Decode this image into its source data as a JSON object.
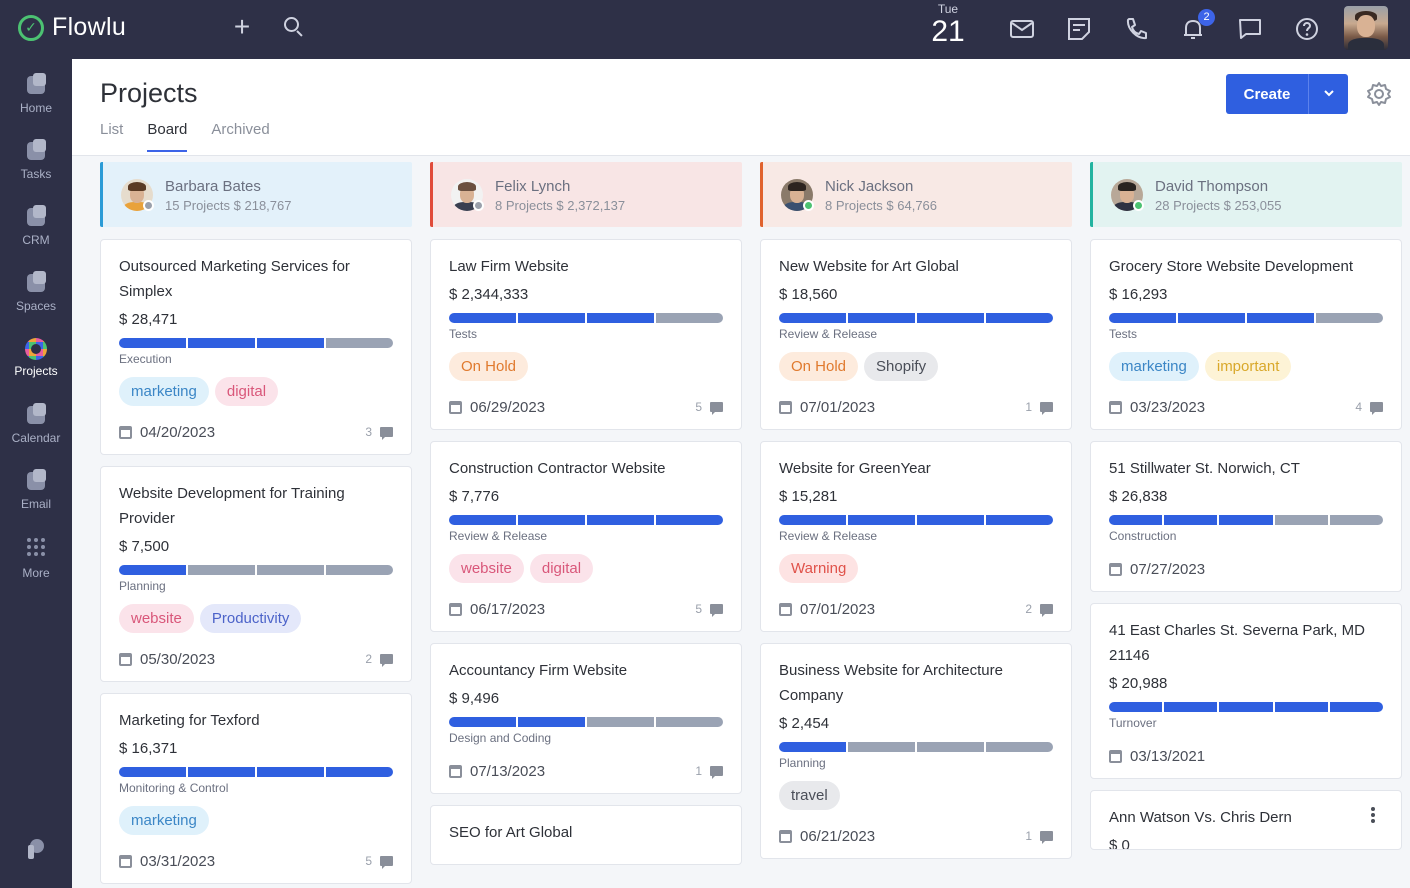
{
  "app": {
    "name": "Flowlu"
  },
  "topbar": {
    "date_day": "Tue",
    "date_num": "21",
    "notification_count": "2"
  },
  "sidebar": {
    "items": [
      {
        "label": "Home",
        "icon": "home-icon"
      },
      {
        "label": "Tasks",
        "icon": "tasks-icon"
      },
      {
        "label": "CRM",
        "icon": "crm-icon"
      },
      {
        "label": "Spaces",
        "icon": "spaces-icon"
      },
      {
        "label": "Projects",
        "icon": "projects-icon",
        "active": true
      },
      {
        "label": "Calendar",
        "icon": "calendar-icon"
      },
      {
        "label": "Email",
        "icon": "email-icon"
      },
      {
        "label": "More",
        "icon": "more-icon"
      }
    ]
  },
  "page": {
    "title": "Projects",
    "tabs": [
      {
        "label": "List"
      },
      {
        "label": "Board",
        "active": true
      },
      {
        "label": "Archived"
      }
    ],
    "create_label": "Create"
  },
  "colors": {
    "accent": "#2f5fe0",
    "progress_done": "#2f5fe0",
    "progress_todo": "#9aa3b4",
    "online": "#4cc272"
  },
  "columns": [
    {
      "owner": "Barbara Bates",
      "meta": "15 Projects $ 218,767",
      "header_bg": "#e3f1fa",
      "accent": "#2b9bd6",
      "status_color": "#9aa0ab",
      "avatar": {
        "bg": "#e6dccd",
        "hair": "#5a3a24",
        "body": "#e9a23b"
      },
      "cards": [
        {
          "title": "Outsourced Marketing Services for Simplex",
          "amount": "$ 28,471",
          "progress": [
            1,
            1,
            1,
            0
          ],
          "stage": "Execution",
          "tags": [
            {
              "label": "marketing",
              "bg": "#dff1fb",
              "fg": "#3b86c6"
            },
            {
              "label": "digital",
              "bg": "#fbe3ea",
              "fg": "#d9577a"
            }
          ],
          "date": "04/20/2023",
          "comments": "3"
        },
        {
          "title": "Website Development for Training Provider",
          "amount": "$ 7,500",
          "progress": [
            1,
            0,
            0,
            0
          ],
          "stage": "Planning",
          "tags": [
            {
              "label": "website",
              "bg": "#fbe3ea",
              "fg": "#d9577a"
            },
            {
              "label": "Productivity",
              "bg": "#e4e8fa",
              "fg": "#4c63c9"
            }
          ],
          "date": "05/30/2023",
          "comments": "2"
        },
        {
          "title": "Marketing for Texford",
          "amount": "$ 16,371",
          "progress": [
            1,
            1,
            1,
            1
          ],
          "stage": "Monitoring & Control",
          "tags": [
            {
              "label": "marketing",
              "bg": "#dff1fb",
              "fg": "#3b86c6"
            }
          ],
          "date": "03/31/2023",
          "comments": "5"
        }
      ]
    },
    {
      "owner": "Felix Lynch",
      "meta": "8 Projects $ 2,372,137",
      "header_bg": "#f8e5e5",
      "accent": "#e04b3a",
      "status_color": "#9aa0ab",
      "avatar": {
        "bg": "#f2f2f2",
        "hair": "#6b5040",
        "body": "#3a3f50"
      },
      "cards": [
        {
          "title": "Law Firm Website",
          "amount": "$ 2,344,333",
          "progress": [
            1,
            1,
            1,
            0
          ],
          "stage": "Tests",
          "tags": [
            {
              "label": "On Hold",
              "bg": "#fdebdd",
              "fg": "#e07a2e"
            }
          ],
          "date": "06/29/2023",
          "comments": "5"
        },
        {
          "title": "Construction Contractor Website",
          "amount": "$ 7,776",
          "progress": [
            1,
            1,
            1,
            1
          ],
          "stage": "Review & Release",
          "tags": [
            {
              "label": "website",
              "bg": "#fbe3ea",
              "fg": "#d9577a"
            },
            {
              "label": "digital",
              "bg": "#fbe3ea",
              "fg": "#d9577a"
            }
          ],
          "date": "06/17/2023",
          "comments": "5"
        },
        {
          "title": "Accountancy Firm Website",
          "amount": "$ 9,496",
          "progress": [
            1,
            1,
            0,
            0
          ],
          "stage": "Design and Coding",
          "tags": [],
          "date": "07/13/2023",
          "comments": "1"
        },
        {
          "title": "SEO for Art Global",
          "amount": "",
          "progress": [],
          "stage": "",
          "tags": [],
          "date": "",
          "comments": ""
        }
      ]
    },
    {
      "owner": "Nick Jackson",
      "meta": "8 Projects $ 64,766",
      "header_bg": "#f8e9e5",
      "accent": "#e0622e",
      "status_color": "#4cc272",
      "avatar": {
        "bg": "#8a7a6a",
        "hair": "#2c2420",
        "body": "#3a5070"
      },
      "cards": [
        {
          "title": "New Website for Art Global",
          "amount": "$ 18,560",
          "progress": [
            1,
            1,
            1,
            1
          ],
          "stage": "Review & Release",
          "tags": [
            {
              "label": "On Hold",
              "bg": "#fdebdd",
              "fg": "#e07a2e"
            },
            {
              "label": "Shopify",
              "bg": "#e8e9ec",
              "fg": "#4a4e58"
            }
          ],
          "date": "07/01/2023",
          "comments": "1"
        },
        {
          "title": "Website for GreenYear",
          "amount": "$ 15,281",
          "progress": [
            1,
            1,
            1,
            1
          ],
          "stage": "Review & Release",
          "tags": [
            {
              "label": "Warning",
              "bg": "#fde3e3",
              "fg": "#e0524a"
            }
          ],
          "date": "07/01/2023",
          "comments": "2"
        },
        {
          "title": "Business Website for Architecture Company",
          "amount": "$ 2,454",
          "progress": [
            1,
            0,
            0,
            0
          ],
          "stage": "Planning",
          "tags": [
            {
              "label": "travel",
              "bg": "#e8e9ec",
              "fg": "#4a4e58"
            }
          ],
          "date": "06/21/2023",
          "comments": "1"
        }
      ]
    },
    {
      "owner": "David Thompson",
      "meta": "28 Projects $ 253,055",
      "header_bg": "#e2f3f1",
      "accent": "#23b3a0",
      "status_color": "#4cc272",
      "avatar": {
        "bg": "#b8a898",
        "hair": "#2a2420",
        "body": "#2e3242"
      },
      "cards": [
        {
          "title": "Grocery Store Website Development",
          "amount": "$ 16,293",
          "progress": [
            1,
            1,
            1,
            0
          ],
          "stage": "Tests",
          "tags": [
            {
              "label": "marketing",
              "bg": "#dff1fb",
              "fg": "#3b86c6"
            },
            {
              "label": "important",
              "bg": "#fdf3d6",
              "fg": "#d9a82a"
            }
          ],
          "date": "03/23/2023",
          "comments": "4"
        },
        {
          "title": "51 Stillwater St. Norwich, CT",
          "amount": "$ 26,838",
          "progress": [
            1,
            1,
            1,
            0,
            0
          ],
          "stage": "Construction",
          "tags": [],
          "date": "07/27/2023",
          "comments": ""
        },
        {
          "title": "41 East Charles St. Severna Park, MD 21146",
          "amount": "$ 20,988",
          "progress": [
            1,
            1,
            1,
            1,
            1
          ],
          "stage": "Turnover",
          "tags": [],
          "date": "03/13/2021",
          "comments": ""
        },
        {
          "title": "Ann Watson Vs. Chris Dern",
          "amount": "$ 0",
          "progress": [],
          "stage": "",
          "tags": [],
          "date": "",
          "comments": "",
          "has_menu": true
        }
      ]
    }
  ]
}
